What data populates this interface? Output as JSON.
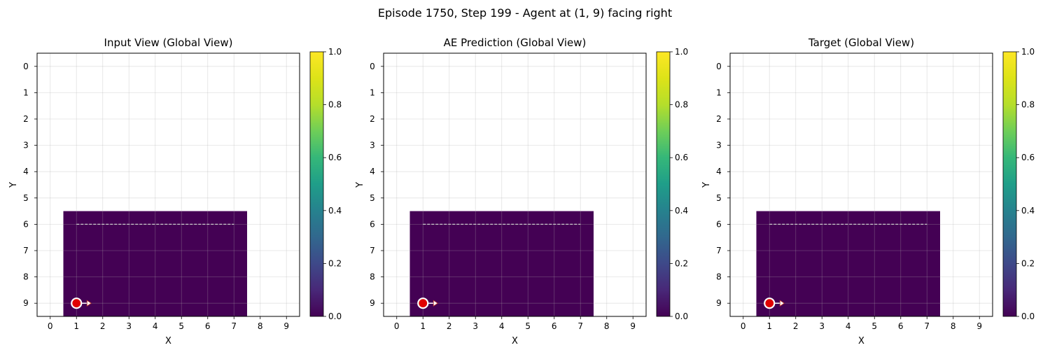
{
  "figure": {
    "title": "Episode 1750, Step 199 - Agent at (1, 9) facing right"
  },
  "chart_data": [
    {
      "type": "heatmap",
      "title": "Input View (Global View)",
      "xlabel": "X",
      "ylabel": "Y",
      "xlim": [
        -0.5,
        9.5
      ],
      "ylim": [
        9.5,
        -0.5
      ],
      "x_ticks": [
        0,
        1,
        2,
        3,
        4,
        5,
        6,
        7,
        8,
        9
      ],
      "y_ticks": [
        0,
        1,
        2,
        3,
        4,
        5,
        6,
        7,
        8,
        9
      ],
      "grid": true,
      "colormap": "viridis",
      "colorbar": {
        "range": [
          0.0,
          1.0
        ],
        "ticks": [
          "0.0",
          "0.2",
          "0.4",
          "0.6",
          "0.8",
          "1.0"
        ]
      },
      "filled_region": {
        "x": [
          1,
          7
        ],
        "y": [
          6,
          9
        ],
        "value": 0.0,
        "color": "#440154"
      },
      "path_line": {
        "x": [
          1,
          7
        ],
        "y": [
          6,
          6
        ],
        "style": "dashed",
        "color": "#cccccc"
      },
      "agent": {
        "x": 1,
        "y": 9,
        "facing": "right",
        "color": "#e00000"
      }
    },
    {
      "type": "heatmap",
      "title": "AE Prediction (Global View)",
      "xlabel": "X",
      "ylabel": "Y",
      "xlim": [
        -0.5,
        9.5
      ],
      "ylim": [
        9.5,
        -0.5
      ],
      "x_ticks": [
        0,
        1,
        2,
        3,
        4,
        5,
        6,
        7,
        8,
        9
      ],
      "y_ticks": [
        0,
        1,
        2,
        3,
        4,
        5,
        6,
        7,
        8,
        9
      ],
      "grid": true,
      "colormap": "viridis",
      "colorbar": {
        "range": [
          0.0,
          1.0
        ],
        "ticks": [
          "0.0",
          "0.2",
          "0.4",
          "0.6",
          "0.8",
          "1.0"
        ]
      },
      "filled_region": {
        "x": [
          1,
          7
        ],
        "y": [
          6,
          9
        ],
        "value": 0.0,
        "color": "#440154"
      },
      "path_line": {
        "x": [
          1,
          7
        ],
        "y": [
          6,
          6
        ],
        "style": "dashed",
        "color": "#cccccc"
      },
      "agent": {
        "x": 1,
        "y": 9,
        "facing": "right",
        "color": "#e00000"
      }
    },
    {
      "type": "heatmap",
      "title": "Target (Global View)",
      "xlabel": "X",
      "ylabel": "Y",
      "xlim": [
        -0.5,
        9.5
      ],
      "ylim": [
        9.5,
        -0.5
      ],
      "x_ticks": [
        0,
        1,
        2,
        3,
        4,
        5,
        6,
        7,
        8,
        9
      ],
      "y_ticks": [
        0,
        1,
        2,
        3,
        4,
        5,
        6,
        7,
        8,
        9
      ],
      "grid": true,
      "colormap": "viridis",
      "colorbar": {
        "range": [
          0.0,
          1.0
        ],
        "ticks": [
          "0.0",
          "0.2",
          "0.4",
          "0.6",
          "0.8",
          "1.0"
        ]
      },
      "filled_region": {
        "x": [
          1,
          7
        ],
        "y": [
          6,
          9
        ],
        "value": 0.0,
        "color": "#440154"
      },
      "path_line": {
        "x": [
          1,
          7
        ],
        "y": [
          6,
          6
        ],
        "style": "dashed",
        "color": "#cccccc"
      },
      "agent": {
        "x": 1,
        "y": 9,
        "facing": "right",
        "color": "#e00000"
      }
    }
  ]
}
